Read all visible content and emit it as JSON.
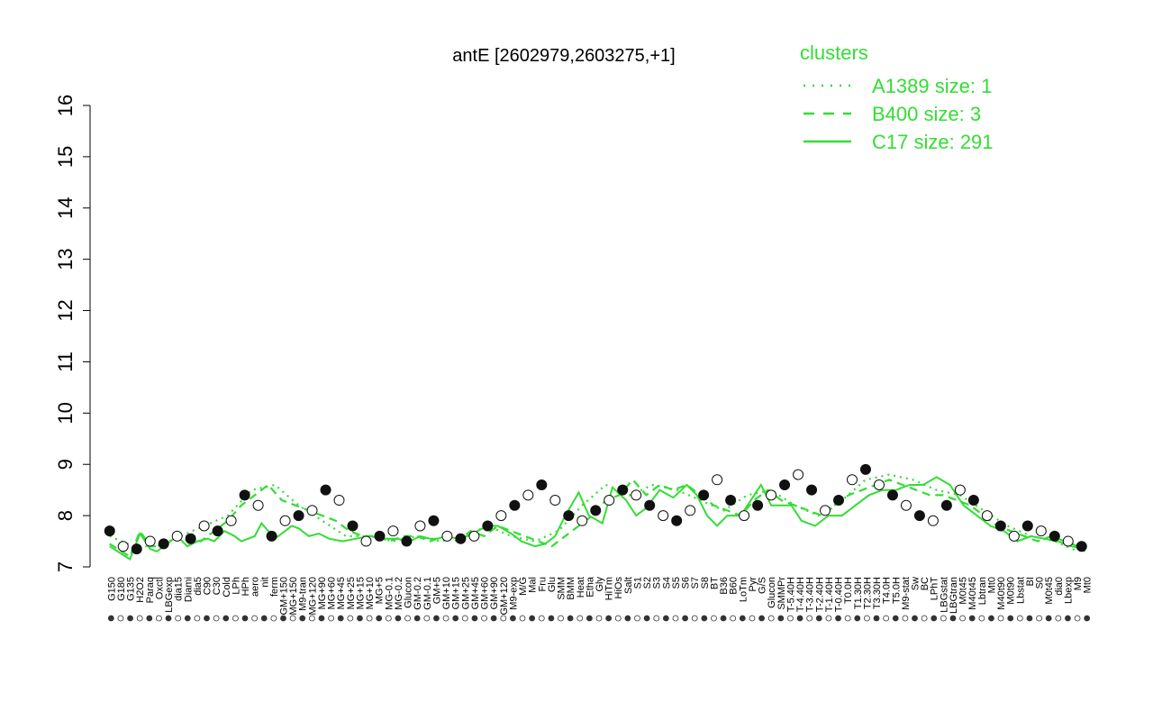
{
  "chart_data": {
    "type": "line",
    "title": "antE [2602979,2603275,+1]",
    "xlabel": "",
    "ylabel": "",
    "ylim": [
      7,
      16
    ],
    "yticks": [
      7,
      8,
      9,
      10,
      11,
      12,
      13,
      14,
      15,
      16
    ],
    "grid": false,
    "legend": {
      "title": "clusters",
      "placement": "top-right",
      "entries": [
        {
          "label": "A1389 size: 1",
          "style": "dotted"
        },
        {
          "label": "B400 size: 3",
          "style": "dashed"
        },
        {
          "label": "C17 size: 291",
          "style": "solid"
        }
      ]
    },
    "x_tick_labels": [
      "G150",
      "G180",
      "G135",
      "H2O2",
      "Paraq",
      "Oxctl",
      "LBGexp",
      "dia15",
      "Diami",
      "dia5",
      "C90",
      "C30",
      "Cold",
      "LPh",
      "HPh",
      "aero",
      "nit",
      "ferm",
      "GM+150",
      "MG+150",
      "M9-tran",
      "MG+120",
      "MG+90",
      "MG+60",
      "MG+45",
      "MG+25",
      "MG+15",
      "MG+10",
      "MG+5",
      "MG-0.1",
      "MG-0.2",
      "Glucon",
      "GM-0.2",
      "GM-0.1",
      "GM+5",
      "GM+10",
      "GM+15",
      "GM+25",
      "GM+45",
      "GM+60",
      "GM+90",
      "GM+120",
      "M9-exp",
      "M/G",
      "Mal",
      "Fru",
      "Glu",
      "SMM",
      "BMM",
      "Heat",
      "Etha",
      "Gly",
      "HiTm",
      "HiOs",
      "Salt",
      "S1",
      "S2",
      "S3",
      "S4",
      "S5",
      "S6",
      "S7",
      "S8",
      "BT",
      "B36",
      "B60",
      "LoTm",
      "Pyr",
      "G/S",
      "Glucon",
      "SMMPr",
      "T-5.40H",
      "T-4.40H",
      "T-3.40H",
      "T-2.40H",
      "T-1.40H",
      "T-0.40H",
      "T0.0H",
      "T1.30H",
      "T2.30H",
      "T3.30H",
      "T4.0H",
      "T5.0H",
      "M9-stat",
      "Sw",
      "BC",
      "LPhT",
      "LBGstat",
      "LBGtran",
      "M0t45",
      "M40t45",
      "Lbtran",
      "Mt0",
      "M40t90",
      "M0t90",
      "Lbstat",
      "BI",
      "S0",
      "M0t45",
      "dia0",
      "Lbexp",
      "M9",
      "Mt0"
    ],
    "series": [
      {
        "name": "C17 size: 291",
        "line_style": "solid",
        "color": "#33dd33",
        "x": [
          1,
          7,
          10,
          13,
          15,
          18,
          21,
          24,
          27,
          30,
          32,
          35,
          38,
          40,
          44,
          46,
          50,
          55,
          57,
          60,
          63,
          66,
          70,
          74,
          78,
          82,
          86,
          90,
          93,
          96,
          98,
          101,
          104,
          107,
          110,
          113,
          116,
          120,
          123,
          127,
          130,
          133,
          136,
          140,
          143,
          147,
          150,
          154,
          157,
          160,
          164,
          168,
          172,
          175,
          178,
          181,
          184,
          188,
          191,
          194,
          197,
          200,
          203,
          206,
          210,
          214,
          218,
          222,
          226,
          230,
          234,
          238,
          242,
          246,
          250,
          254,
          258,
          262,
          266,
          270,
          274,
          278,
          282,
          286,
          290
        ],
        "y": [
          7.4,
          7.15,
          7.65,
          7.35,
          7.3,
          7.45,
          7.6,
          7.4,
          7.5,
          7.55,
          7.5,
          7.7,
          7.6,
          7.5,
          7.6,
          7.85,
          7.55,
          7.8,
          7.75,
          7.6,
          7.65,
          7.55,
          7.5,
          7.55,
          7.6,
          7.55,
          7.55,
          7.5,
          7.6,
          7.55,
          7.55,
          7.6,
          7.55,
          7.6,
          7.7,
          7.8,
          7.8,
          7.65,
          7.5,
          7.4,
          7.45,
          7.6,
          8.0,
          8.45,
          8.0,
          7.85,
          8.55,
          8.3,
          8.0,
          8.15,
          8.5,
          8.35,
          8.6,
          8.4,
          8.0,
          7.8,
          8.0,
          8.0,
          8.3,
          8.6,
          8.2,
          8.2,
          8.2,
          7.9,
          7.8,
          8.0,
          8.0,
          8.2,
          8.4,
          8.5,
          8.5,
          8.6,
          8.6,
          8.75,
          8.6,
          8.2,
          8.0,
          7.8,
          7.7,
          7.5,
          7.6,
          7.55,
          7.5,
          7.4,
          7.35
        ]
      },
      {
        "name": "B400 size: 3",
        "line_style": "dashed",
        "color": "#33dd33",
        "x": [
          1,
          7,
          10,
          13,
          17,
          20,
          24,
          28,
          32,
          36,
          40,
          44,
          48,
          52,
          56,
          60,
          64,
          68,
          72,
          76,
          80,
          84,
          88,
          92,
          96,
          100,
          104,
          108,
          112,
          116,
          120,
          124,
          128,
          132,
          136,
          140,
          144,
          148,
          152,
          156,
          160,
          164,
          168,
          172,
          176,
          180,
          184,
          188,
          192,
          196,
          200,
          204,
          208,
          212,
          216,
          220,
          224,
          228,
          232,
          236,
          240,
          244,
          248,
          252,
          256,
          260,
          264,
          268,
          272,
          276,
          280,
          284,
          288,
          290
        ],
        "y": [
          7.45,
          7.2,
          7.7,
          7.4,
          7.4,
          7.55,
          7.6,
          7.5,
          7.7,
          7.9,
          8.2,
          8.4,
          8.6,
          8.3,
          8.2,
          8.1,
          8.0,
          7.9,
          7.7,
          7.6,
          7.6,
          7.5,
          7.6,
          7.6,
          7.5,
          7.6,
          7.5,
          7.7,
          7.6,
          7.8,
          7.7,
          7.6,
          7.5,
          7.4,
          7.6,
          7.8,
          8.0,
          8.3,
          8.4,
          8.7,
          8.4,
          8.6,
          8.5,
          8.6,
          8.4,
          8.2,
          8.1,
          8.0,
          8.3,
          8.5,
          8.3,
          8.2,
          8.1,
          8.0,
          8.2,
          8.4,
          8.5,
          8.6,
          8.7,
          8.6,
          8.5,
          8.4,
          8.4,
          8.3,
          8.2,
          8.0,
          7.8,
          7.7,
          7.6,
          7.5,
          7.6,
          7.5,
          7.4,
          7.3
        ]
      },
      {
        "name": "A1389 size: 1",
        "line_style": "dotted",
        "color": "#33dd33",
        "x": [
          1,
          8,
          15,
          22,
          29,
          36,
          43,
          50,
          57,
          64,
          71,
          78,
          85,
          92,
          99,
          106,
          113,
          120,
          127,
          134,
          141,
          148,
          155,
          162,
          169,
          176,
          183,
          190,
          197,
          204,
          211,
          218,
          225,
          232,
          239,
          246,
          253,
          260,
          267,
          274,
          281,
          288
        ],
        "y": [
          7.6,
          7.4,
          7.4,
          7.6,
          7.8,
          8.0,
          8.5,
          8.6,
          8.2,
          7.9,
          7.6,
          7.6,
          7.5,
          7.6,
          7.5,
          7.6,
          7.8,
          7.6,
          7.5,
          7.7,
          8.2,
          8.6,
          8.4,
          8.6,
          8.5,
          8.3,
          8.1,
          8.4,
          8.5,
          8.2,
          8.0,
          8.3,
          8.7,
          8.8,
          8.7,
          8.5,
          8.4,
          8.1,
          7.8,
          7.6,
          7.5,
          7.3
        ]
      }
    ],
    "points": {
      "x": [
        1,
        5,
        9,
        13,
        17,
        21,
        25,
        29,
        33,
        37,
        41,
        45,
        49,
        53,
        57,
        61,
        65,
        69,
        73,
        77,
        81,
        85,
        89,
        93,
        97,
        101,
        105,
        109,
        113,
        117,
        121,
        125,
        129,
        133,
        137,
        141,
        145,
        149,
        153,
        157,
        161,
        165,
        169,
        173,
        177,
        181,
        185,
        189,
        193,
        197,
        201,
        205,
        209,
        213,
        217,
        221,
        225,
        229,
        233,
        237,
        241,
        245,
        249,
        253,
        257,
        261,
        265,
        269,
        273,
        277,
        281,
        285,
        289
      ],
      "y": [
        7.7,
        7.4,
        7.35,
        7.5,
        7.45,
        7.6,
        7.55,
        7.8,
        7.7,
        7.9,
        8.4,
        8.2,
        7.6,
        7.9,
        8.0,
        8.1,
        8.5,
        8.3,
        7.8,
        7.5,
        7.6,
        7.7,
        7.5,
        7.8,
        7.9,
        7.6,
        7.55,
        7.6,
        7.8,
        8.0,
        8.2,
        8.4,
        8.6,
        8.3,
        8.0,
        7.9,
        8.1,
        8.3,
        8.5,
        8.4,
        8.2,
        8.0,
        7.9,
        8.1,
        8.4,
        8.7,
        8.3,
        8.0,
        8.2,
        8.4,
        8.6,
        8.8,
        8.5,
        8.1,
        8.3,
        8.7,
        8.9,
        8.6,
        8.4,
        8.2,
        8.0,
        7.9,
        8.2,
        8.5,
        8.3,
        8.0,
        7.8,
        7.6,
        7.8,
        7.7,
        7.6,
        7.5,
        7.4
      ]
    }
  }
}
